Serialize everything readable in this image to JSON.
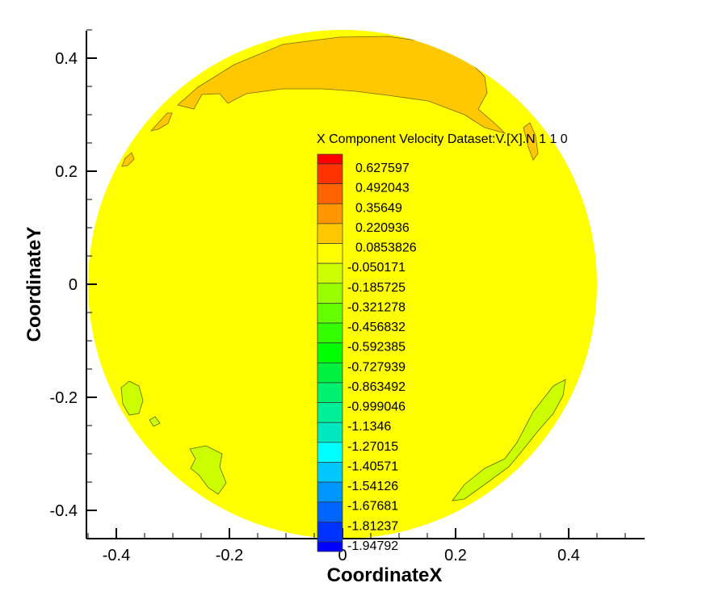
{
  "chart_data": {
    "type": "heatmap",
    "subtype": "contour",
    "xlabel": "CoordinateX",
    "ylabel": "CoordinateY",
    "xlim": [
      -0.45,
      0.535
    ],
    "ylim": [
      -0.45,
      0.45
    ],
    "xticks": [
      -0.4,
      -0.2,
      0,
      0.2,
      0.4
    ],
    "xtick_labels": [
      "-0.4",
      "-0.2",
      "0",
      "0.2",
      "0.4"
    ],
    "yticks": [
      -0.4,
      -0.2,
      0,
      0.2,
      0.4
    ],
    "ytick_labels": [
      "-0.4",
      "-0.2",
      "0",
      "0.2",
      "0.4"
    ],
    "domain_shape": "circle",
    "domain_radius": 0.45,
    "background_level_color": "#ffff00",
    "legend": {
      "title": "X Component Velocity Dataset:V.[X].N 1 1 0",
      "placement": "center",
      "levels": [
        "0.627597",
        "0.492043",
        "0.35649",
        "0.220936",
        "0.0853826",
        "-0.050171",
        "-0.185725",
        "-0.321278",
        "-0.456832",
        "-0.592385",
        "-0.727939",
        "-0.863492",
        "-0.999046",
        "-1.1346",
        "-1.27015",
        "-1.40571",
        "-1.54126",
        "-1.67681",
        "-1.81237",
        "-1.94792"
      ],
      "band_colors": [
        "#ff0000",
        "#ff3300",
        "#ff6400",
        "#ff9600",
        "#ffc800",
        "#ffff00",
        "#ccff00",
        "#99ff00",
        "#66ff00",
        "#33ff00",
        "#00ff00",
        "#00f040",
        "#00f070",
        "#00f09a",
        "#00e8c0",
        "#00ffff",
        "#00c8ff",
        "#0096ff",
        "#0064ff",
        "#0032ff",
        "#0000ff"
      ]
    },
    "regions": [
      {
        "level_color": "#ffc800",
        "location": "top arc, y 0.28 to 0.44"
      },
      {
        "level_color": "#ccff00",
        "location": "lower-left and lower-right patches"
      }
    ]
  }
}
